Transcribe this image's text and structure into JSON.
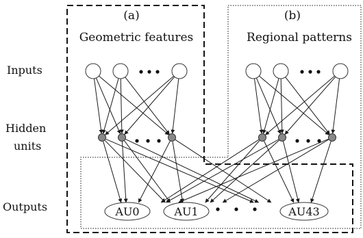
{
  "panels": [
    {
      "id": "a",
      "letter": "(a)",
      "title": "Geometric features"
    },
    {
      "id": "b",
      "letter": "(b)",
      "title": "Regional patterns"
    }
  ],
  "rows": {
    "inputs": "Inputs",
    "hidden_line1": "Hidden",
    "hidden_line2": "units",
    "outputs": "Outputs"
  },
  "outputs": [
    "AU0",
    "AU1",
    "AU43"
  ],
  "colors": {
    "input_fill": "#ffffff",
    "hidden_fill": "#888888",
    "line": "#1a1a1a"
  }
}
